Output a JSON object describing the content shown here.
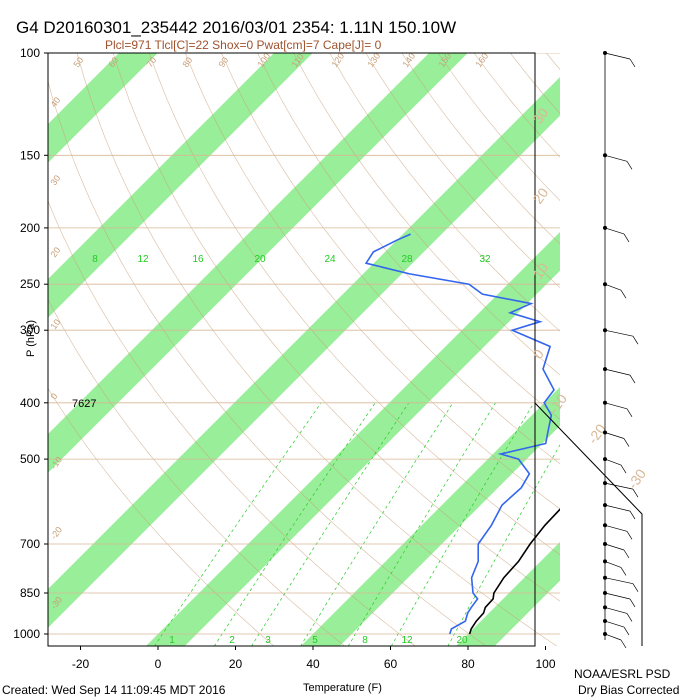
{
  "title": "G4 D20160301_235442 2016/03/01 2354:  1.11N 150.10W",
  "subtitle": "Plcl=971 Tlcl[C]=22 Shox=0 Pwat[cm]=7 Cape[J]= 0",
  "footer": {
    "created": "Created: Wed Sep 14 11:09:45 MDT 2016",
    "org": "NOAA/ESRL PSD",
    "correction": "Dry Bias Corrected"
  },
  "annotation_7627": "7627",
  "colors": {
    "green_band": "#99ee99",
    "temperature": "#000000",
    "dewpoint": "#3366ee",
    "isotherm_label": "#c8a07a",
    "mixing_ratio": "#22cc22",
    "dry_adiabat": "#c8a07a"
  },
  "chart_data": {
    "type": "line",
    "title": "G4 D20160301_235442 2016/03/01 2354:  1.11N 150.10W",
    "subtitle": "Plcl=971 Tlcl[C]=22 Shox=0 Pwat[cm]=7 Cape[J]= 0",
    "xlabel": "Temperature (F)",
    "ylabel": "P (hPa)",
    "x_ticks": [
      "-20",
      "0",
      "20",
      "40",
      "60",
      "80",
      "100"
    ],
    "x_tick_values": [
      -20,
      0,
      20,
      40,
      60,
      80,
      100
    ],
    "y_ticks": [
      "100",
      "150",
      "200",
      "250",
      "300",
      "400",
      "500",
      "700",
      "850",
      "1000"
    ],
    "y_tick_values": [
      100,
      150,
      200,
      250,
      300,
      400,
      500,
      700,
      850,
      1000
    ],
    "xlim": [
      -29,
      121
    ],
    "ylim": [
      1050,
      100
    ],
    "y_scale": "log",
    "skew": "skew-T log-P",
    "mixing_ratio_labels_upper": [
      "8",
      "12",
      "16",
      "20",
      "24",
      "28",
      "32"
    ],
    "mixing_ratio_labels_lower": [
      "1",
      "2",
      "3",
      "5",
      "8",
      "12",
      "20"
    ],
    "isotherm_labels_top": [
      "50",
      "60",
      "70",
      "80",
      "90",
      "100",
      "110",
      "120",
      "130",
      "140",
      "150",
      "160"
    ],
    "isotherm_labels_left": [
      "40",
      "30",
      "20",
      "10",
      "0",
      "-10",
      "-20",
      "-30"
    ],
    "isotherm_labels_right": [
      "30",
      "20",
      "10",
      "0",
      "-10",
      "-20",
      "-30"
    ],
    "series": [
      {
        "name": "Temperature",
        "color": "#000000",
        "points": [
          [
            1000,
            80.4
          ],
          [
            980,
            79.5
          ],
          [
            950,
            78.8
          ],
          [
            920,
            78.6
          ],
          [
            900,
            77.6
          ],
          [
            870,
            77.4
          ],
          [
            850,
            76.1
          ],
          [
            800,
            74.7
          ],
          [
            750,
            74.3
          ],
          [
            700,
            72.8
          ],
          [
            650,
            71.8
          ],
          [
            600,
            71.5
          ],
          [
            550,
            69.6
          ],
          [
            500,
            66.8
          ],
          [
            480,
            68.6
          ],
          [
            450,
            66.5
          ],
          [
            400,
            58.0
          ],
          [
            350,
            49.0
          ],
          [
            300,
            38.5
          ],
          [
            250,
            25.0
          ],
          [
            220,
            14.0
          ],
          [
            200,
            3.5
          ],
          [
            185,
            -3.5
          ]
        ]
      },
      {
        "name": "Dewpoint",
        "color": "#3366ee",
        "points": [
          [
            1000,
            75.3
          ],
          [
            980,
            74.4
          ],
          [
            950,
            76.0
          ],
          [
            920,
            74.5
          ],
          [
            900,
            74.0
          ],
          [
            870,
            73.4
          ],
          [
            850,
            70.7
          ],
          [
            800,
            66.4
          ],
          [
            750,
            63.9
          ],
          [
            700,
            59.4
          ],
          [
            650,
            58.0
          ],
          [
            600,
            55.5
          ],
          [
            560,
            56.0
          ],
          [
            530,
            54.5
          ],
          [
            500,
            47.9
          ],
          [
            490,
            42.0
          ],
          [
            470,
            50.9
          ],
          [
            450,
            48.6
          ],
          [
            420,
            45.0
          ],
          [
            400,
            40.0
          ],
          [
            380,
            39.2
          ],
          [
            350,
            31.0
          ],
          [
            320,
            27.0
          ],
          [
            300,
            13.0
          ],
          [
            290,
            18.0
          ],
          [
            280,
            8.0
          ],
          [
            270,
            11.0
          ],
          [
            260,
            -4.0
          ],
          [
            250,
            -10.0
          ],
          [
            240,
            -28.0
          ],
          [
            230,
            -42.0
          ],
          [
            220,
            -43.0
          ],
          [
            210,
            -40.0
          ],
          [
            205,
            -38.0
          ]
        ]
      }
    ],
    "wind_barbs_pressure_levels": [
      1000,
      950,
      900,
      850,
      800,
      750,
      700,
      650,
      600,
      550,
      500,
      450,
      400,
      350,
      300,
      250,
      200,
      150,
      100
    ]
  }
}
